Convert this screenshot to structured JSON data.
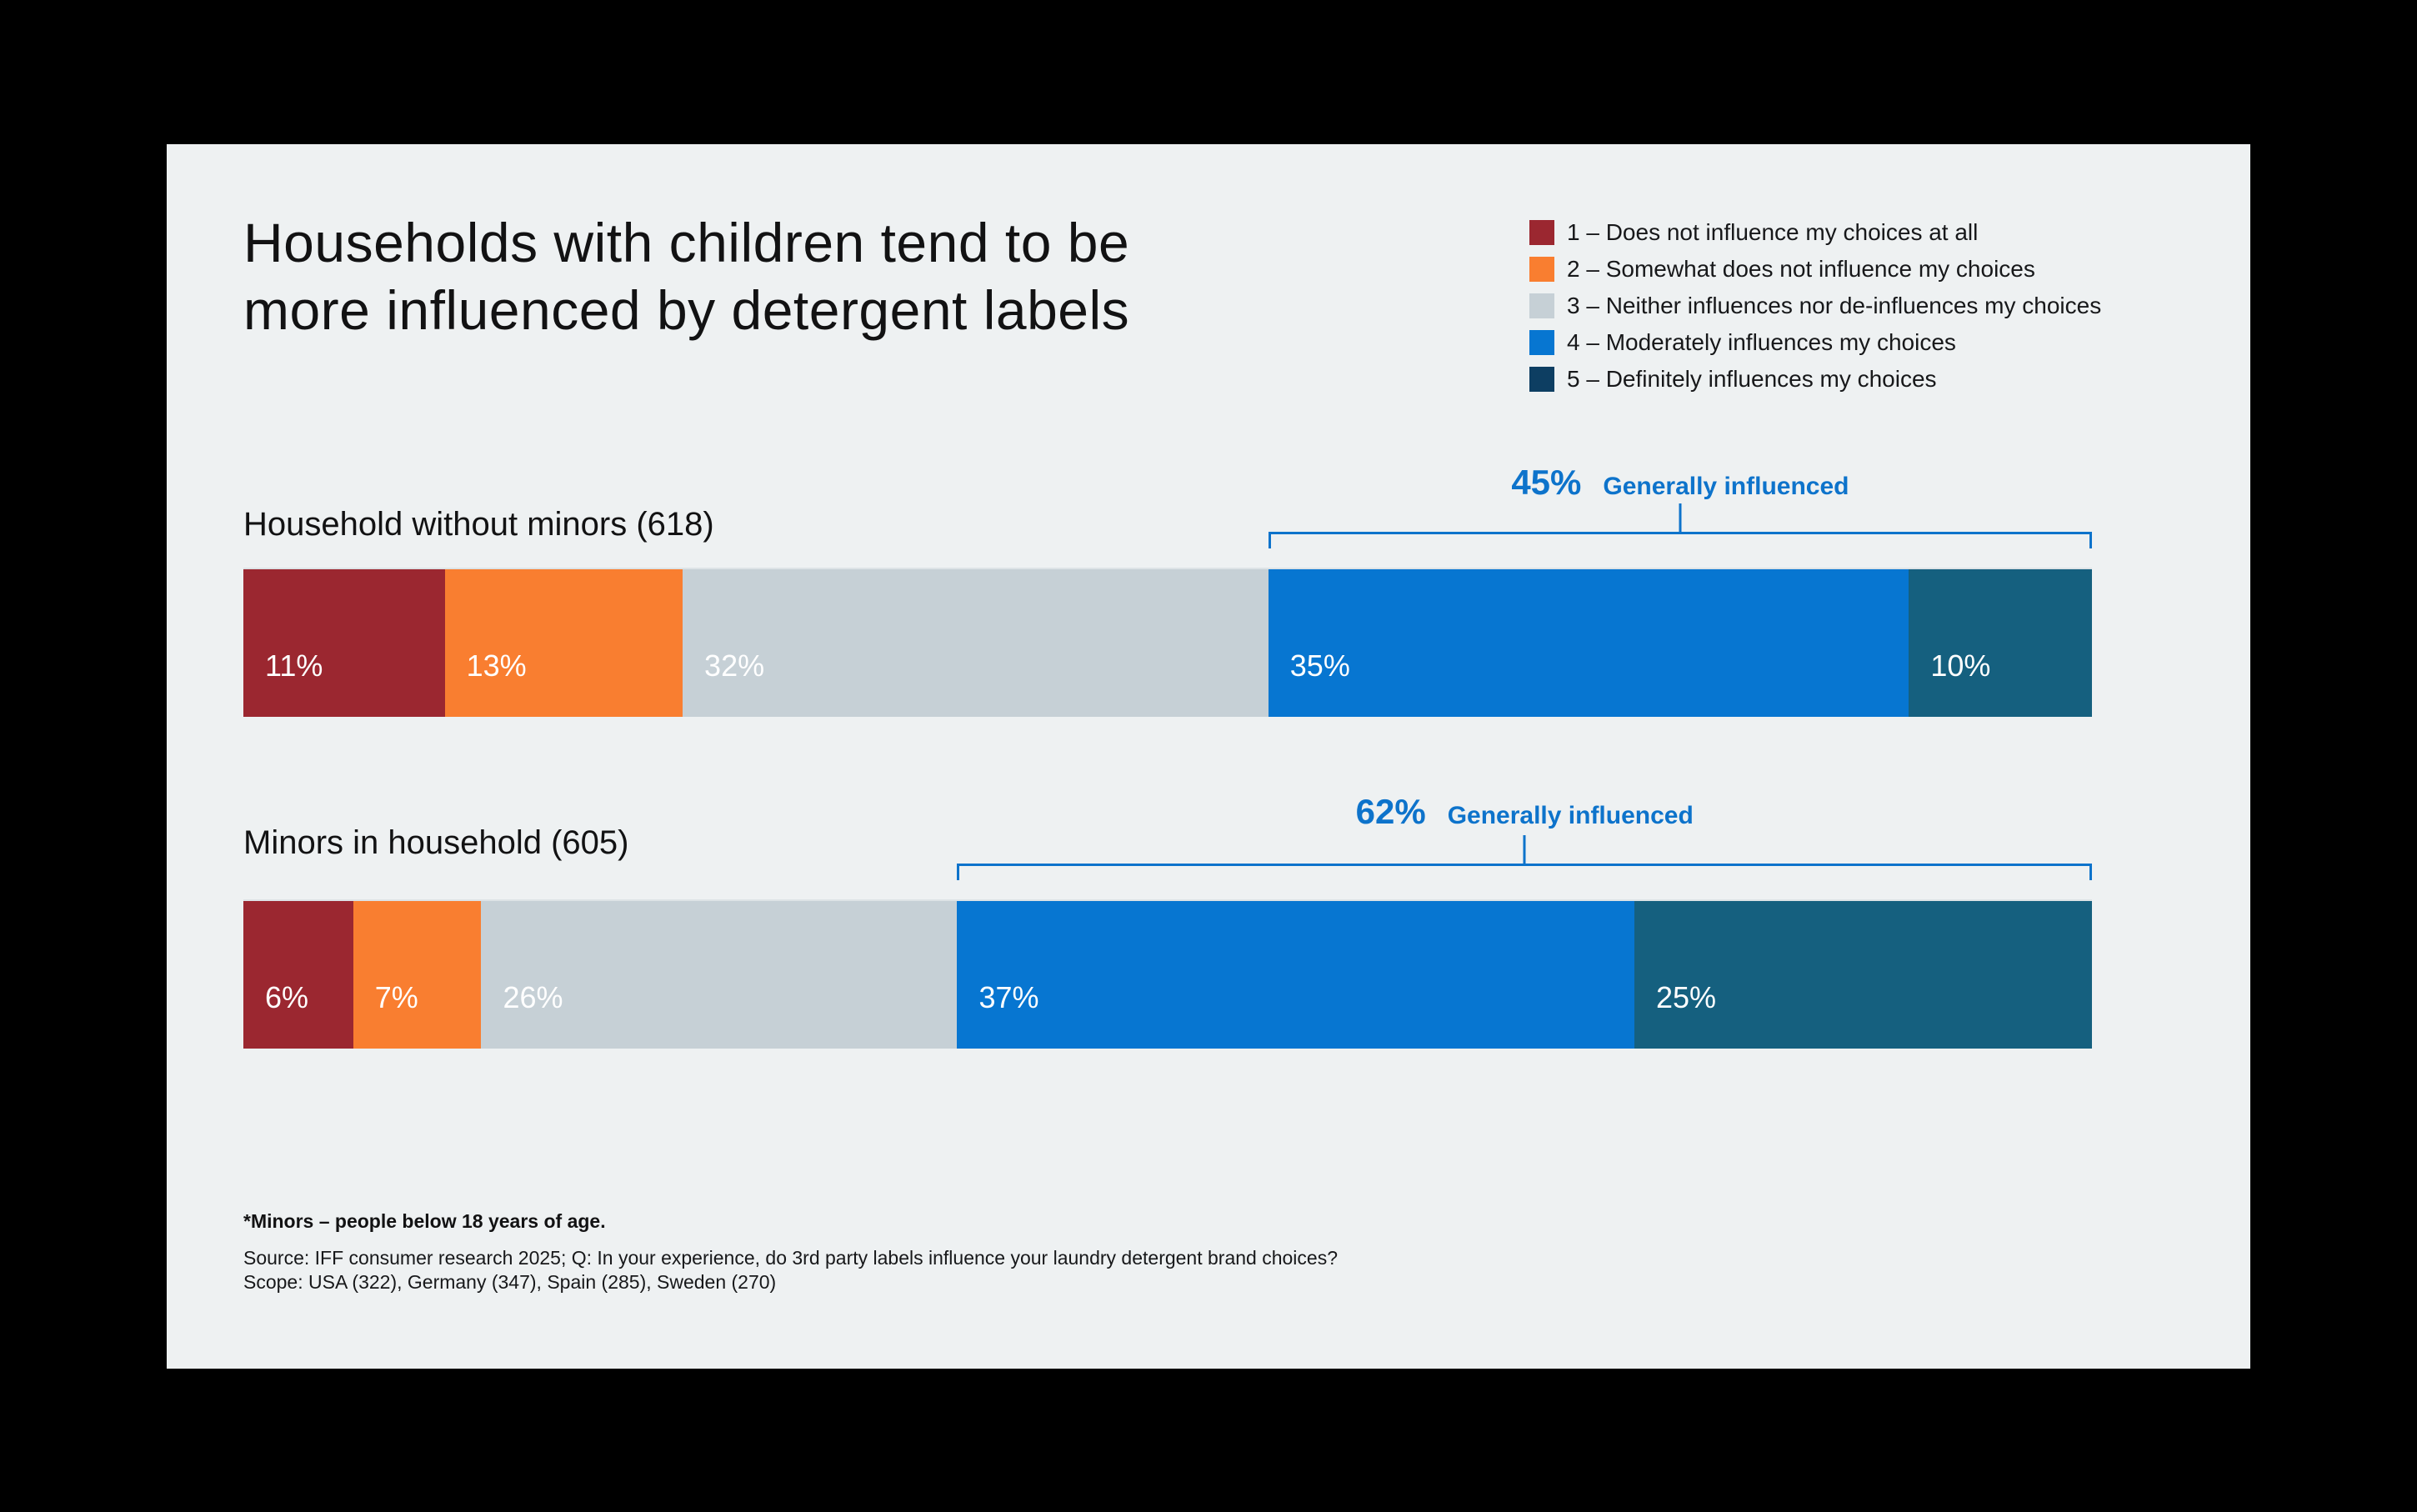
{
  "canvas": {
    "background": "#000000"
  },
  "panel": {
    "background": "#eef1f2"
  },
  "title": {
    "lines": [
      "Households with children tend to be",
      "more influenced by detergent labels"
    ]
  },
  "legend": {
    "items": [
      {
        "label": "1 – Does not influence my choices at all",
        "color": "#9b2730"
      },
      {
        "label": "2 – Somewhat does not influence my choices",
        "color": "#f97e30"
      },
      {
        "label": "3 – Neither influences nor de-influences my choices",
        "color": "#c6d0d6"
      },
      {
        "label": "4 – Moderately influences my choices",
        "color": "#0776d1"
      },
      {
        "label": "5 – Definitely influences my choices",
        "color": "#0d3e62"
      }
    ]
  },
  "chart_data": {
    "type": "bar",
    "orientation": "horizontal_stacked",
    "unit": "%",
    "categories": [
      "1 – Does not influence my choices at all",
      "2 – Somewhat does not influence my choices",
      "3 – Neither influences nor de-influences my choices",
      "4 – Moderately influences my choices",
      "5 – Definitely influences my choices"
    ],
    "segment_colors": [
      "#9b2730",
      "#f97e30",
      "#c6d0d6",
      "#0776d1",
      "#15607f"
    ],
    "value_label_color": "#ffffff",
    "accent_color": "#0d73cb",
    "rows": [
      {
        "label": "Household without minors (618)",
        "values": [
          11,
          13,
          32,
          35,
          10
        ],
        "value_labels": [
          "11%",
          "13%",
          "32%",
          "35%",
          "10%"
        ],
        "callout": {
          "value": "45%",
          "text": "Generally influenced",
          "covers_segments": [
            4,
            5
          ]
        }
      },
      {
        "label": "Minors in household (605)",
        "values": [
          6,
          7,
          26,
          37,
          25
        ],
        "value_labels": [
          "6%",
          "7%",
          "26%",
          "37%",
          "25%"
        ],
        "callout": {
          "value": "62%",
          "text": "Generally influenced",
          "covers_segments": [
            4,
            5
          ]
        }
      }
    ]
  },
  "footnotes": {
    "bold_note": "*Minors – people below 18 years of age.",
    "source_line1": "Source: IFF consumer research 2025; Q: In your experience, do 3rd party labels influence your laundry detergent brand choices?",
    "source_line2": "Scope: USA (322), Germany (347), Spain (285), Sweden (270)"
  }
}
